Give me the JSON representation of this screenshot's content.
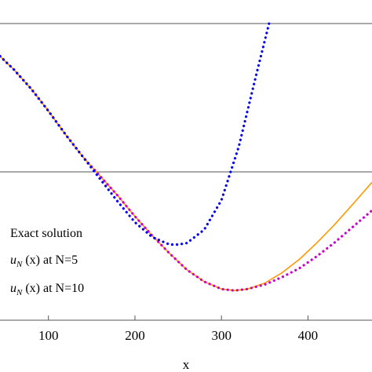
{
  "chart_data": {
    "type": "line",
    "xlabel": "x",
    "ylabel": "",
    "xlim": [
      44,
      474
    ],
    "ylim": [
      -1.0,
      1.0
    ],
    "x_ticks": [
      100,
      200,
      300,
      400
    ],
    "x_tick_labels": [
      "100",
      "200",
      "300",
      "400"
    ],
    "reference_lines": [
      0
    ],
    "legend_placement": "left",
    "series": [
      {
        "name": "Exact solution",
        "color": "#ff9900",
        "style": "solid",
        "x": [
          44,
          60,
          80,
          100,
          120,
          140,
          160,
          180,
          200,
          220,
          240,
          260,
          280,
          300,
          315,
          330,
          350,
          370,
          390,
          410,
          430,
          450,
          474
        ],
        "y": [
          0.78,
          0.69,
          0.56,
          0.41,
          0.25,
          0.1,
          -0.03,
          -0.16,
          -0.3,
          -0.43,
          -0.55,
          -0.66,
          -0.74,
          -0.79,
          -0.8,
          -0.79,
          -0.75,
          -0.68,
          -0.59,
          -0.48,
          -0.36,
          -0.23,
          -0.07
        ]
      },
      {
        "name": "u_N (x) at N=10",
        "color": "#cc00cc",
        "style": "dotted",
        "x": [
          44,
          60,
          80,
          100,
          120,
          140,
          160,
          180,
          200,
          220,
          240,
          260,
          280,
          300,
          315,
          330,
          350,
          370,
          390,
          410,
          430,
          450,
          474
        ],
        "y": [
          0.78,
          0.69,
          0.56,
          0.41,
          0.25,
          0.1,
          -0.03,
          -0.16,
          -0.3,
          -0.43,
          -0.55,
          -0.66,
          -0.74,
          -0.79,
          -0.8,
          -0.79,
          -0.76,
          -0.71,
          -0.65,
          -0.57,
          -0.48,
          -0.38,
          -0.26
        ]
      },
      {
        "name": "u_N (x) at N=5",
        "color": "#0000ee",
        "style": "dotted",
        "x": [
          44,
          60,
          80,
          100,
          120,
          140,
          160,
          180,
          200,
          220,
          240,
          250,
          260,
          280,
          300,
          320,
          340,
          355
        ],
        "y": [
          0.78,
          0.69,
          0.56,
          0.41,
          0.25,
          0.1,
          -0.05,
          -0.2,
          -0.34,
          -0.44,
          -0.49,
          -0.49,
          -0.48,
          -0.39,
          -0.19,
          0.17,
          0.65,
          1.0
        ]
      }
    ],
    "legend": [
      {
        "label_main": "Exact solution",
        "label_sub": "",
        "label_rest": ""
      },
      {
        "label_main": "u",
        "label_sub": "N",
        "label_rest": " (x) at N=5"
      },
      {
        "label_main": "u",
        "label_sub": "N",
        "label_rest": " (x) at N=10"
      }
    ]
  }
}
